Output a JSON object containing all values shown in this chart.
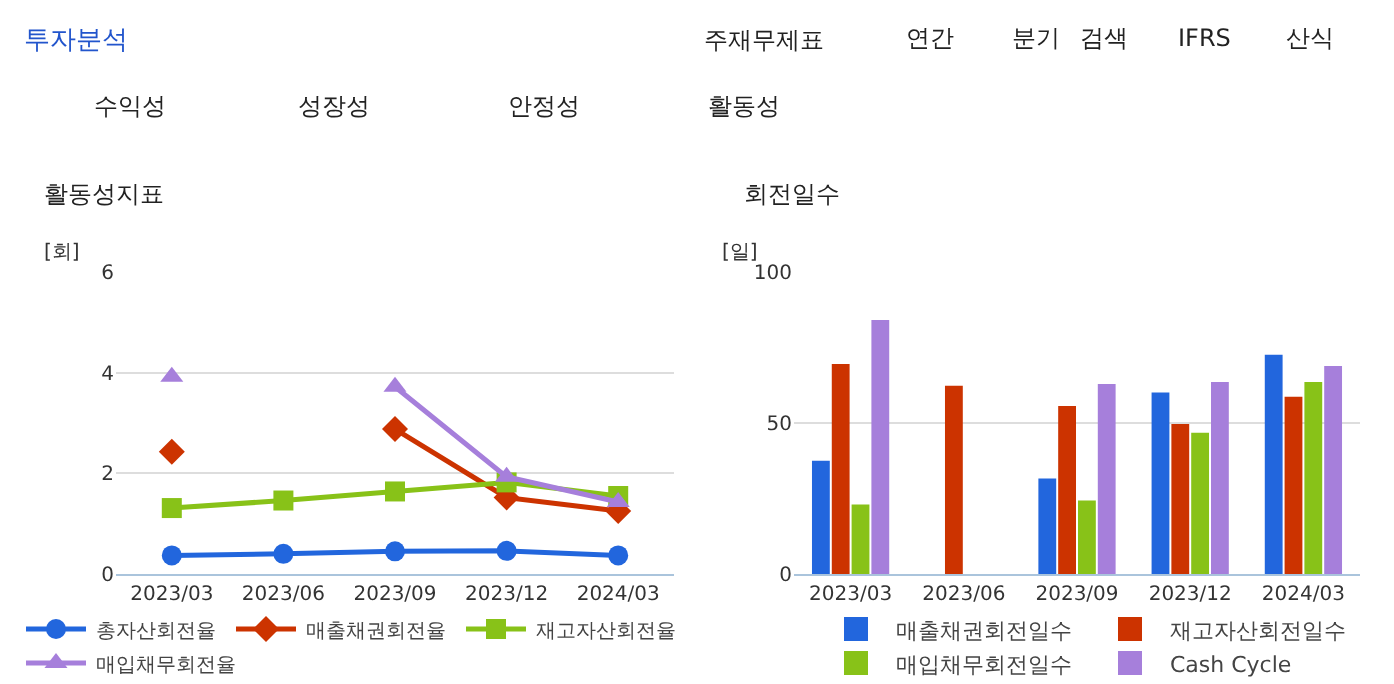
{
  "chart_data": [
    {
      "type": "other",
      "title": "투자분석",
      "annotations": [
        "주재무제표",
        "연간",
        "분기",
        "검색",
        "IFRS",
        "산식",
        "수익성",
        "성장성",
        "안정성",
        "활동성"
      ]
    },
    {
      "type": "line",
      "title": "활동성지표",
      "ylabel": "[회]",
      "categories": [
        "2023/03",
        "2023/06",
        "2023/09",
        "2023/12",
        "2024/03"
      ],
      "ylim": [
        0,
        6
      ],
      "yticks": [
        0,
        2,
        4,
        6
      ],
      "grid": "y",
      "legend": "bottom",
      "series": [
        {
          "name": "총자산회전율",
          "color": "#2266dd",
          "marker": "circle",
          "values": [
            0.37,
            0.4,
            0.45,
            0.46,
            0.37
          ]
        },
        {
          "name": "매출채권회전율",
          "color": "#cc3300",
          "marker": "diamond",
          "values": [
            2.43,
            null,
            2.88,
            1.52,
            1.25
          ]
        },
        {
          "name": "재고자산회전율",
          "color": "#88c218",
          "marker": "square",
          "values": [
            1.31,
            1.46,
            1.64,
            1.82,
            1.55
          ]
        },
        {
          "name": "매입채무회전율",
          "color": "#a67fdb",
          "marker": "triangle",
          "values": [
            3.92,
            null,
            3.72,
            1.93,
            1.43
          ]
        }
      ]
    },
    {
      "type": "bar",
      "title": "회전일수",
      "ylabel": "[일]",
      "categories": [
        "2023/03",
        "2023/06",
        "2023/09",
        "2023/12",
        "2024/03"
      ],
      "ylim": [
        0,
        100
      ],
      "yticks": [
        0,
        50,
        100
      ],
      "grid": "y",
      "legend": "bottom",
      "series": [
        {
          "name": "매출채권회전일수",
          "color": "#2266dd",
          "values": [
            37.5,
            null,
            31.6,
            60.1,
            72.6
          ]
        },
        {
          "name": "재고자산회전일수",
          "color": "#cc3300",
          "values": [
            69.5,
            62.3,
            55.6,
            49.7,
            58.7
          ]
        },
        {
          "name": "매입채무회전일수",
          "color": "#88c218",
          "values": [
            23.0,
            null,
            24.3,
            46.8,
            63.6
          ]
        },
        {
          "name": "Cash Cycle",
          "color": "#a67fdb",
          "values": [
            84.1,
            null,
            62.9,
            63.6,
            68.9
          ]
        }
      ]
    }
  ]
}
